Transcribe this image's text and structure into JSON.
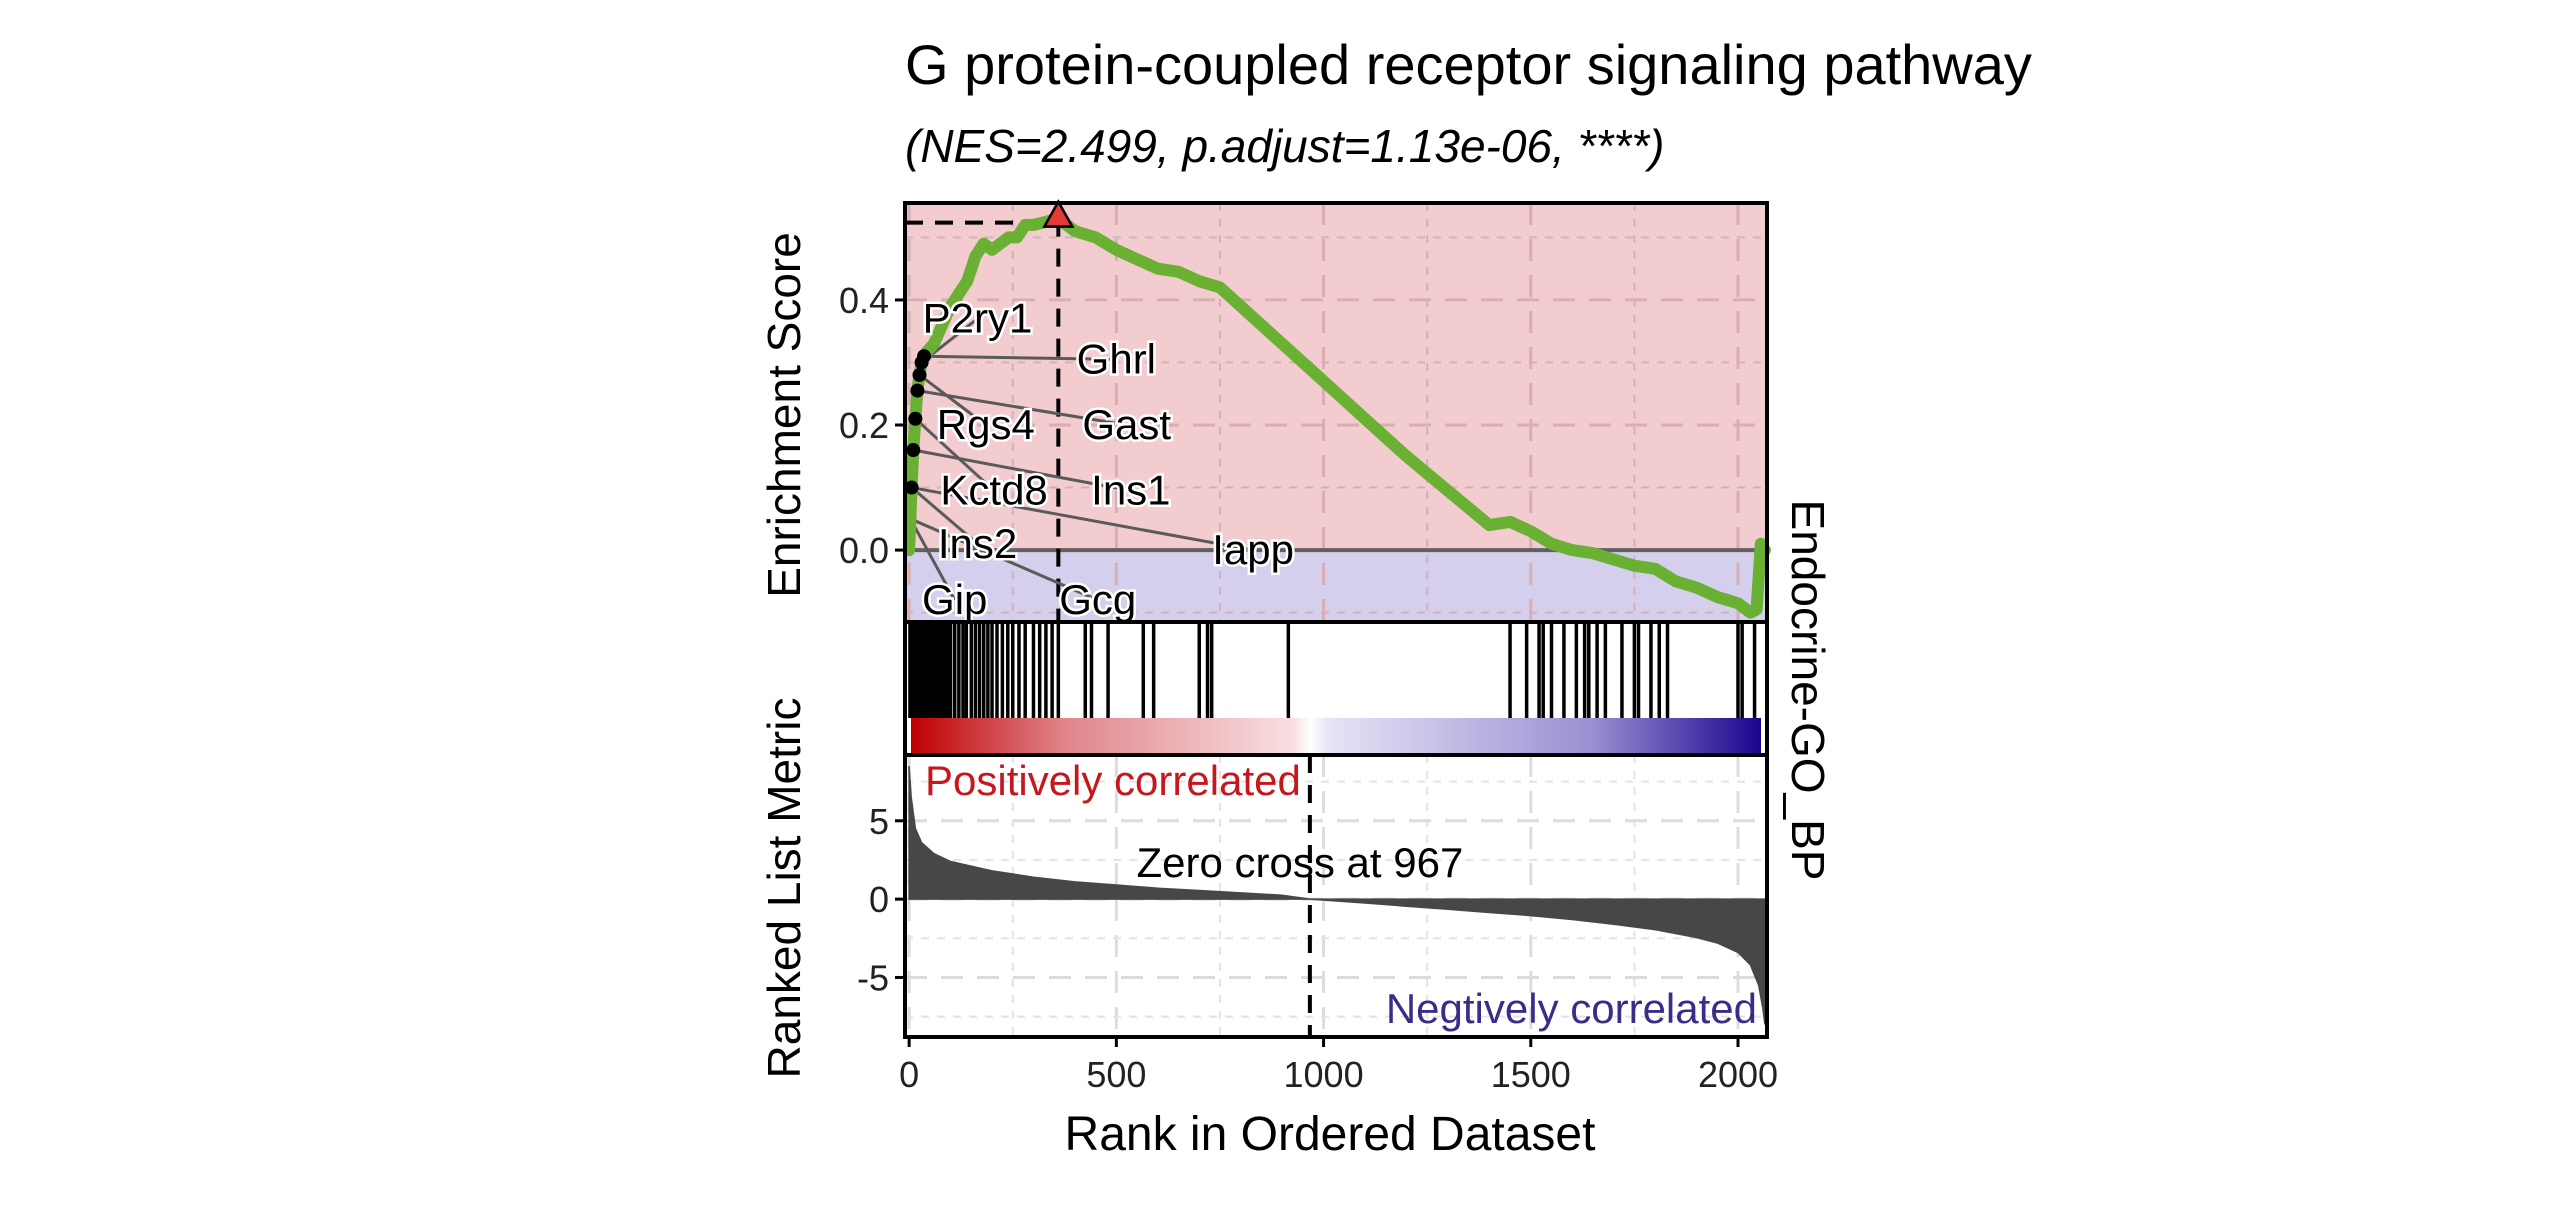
{
  "chart_data": {
    "type": "gsea_enrichment_plot",
    "title": "G protein-coupled receptor signaling pathway",
    "subtitle": "(NES=2.499, p.adjust=1.13e-06, ****)",
    "side_label": "Endocrine-GO_BP",
    "xlabel": "Rank in Ordered Dataset",
    "xlim": [
      -10,
      2070
    ],
    "x_ticks": [
      0,
      500,
      1000,
      1500,
      2000
    ],
    "colors": {
      "positive_bg": "#f2cccf",
      "negative_bg": "#d3cfec",
      "es_line": "#6ab133",
      "peak_marker": "#e53935",
      "positive_text": "#c8161d",
      "negative_text": "#3a2d8a",
      "metric_fill": "#474747",
      "heat_red": "#c00000",
      "heat_blue": "#1a0590"
    },
    "es_panel": {
      "ylabel": "Enrichment Score",
      "ylim": [
        -0.115,
        0.555
      ],
      "y_ticks": [
        0.0,
        0.2,
        0.4
      ],
      "y_tick_labels": [
        "0.0",
        "0.2",
        "0.4"
      ],
      "peak": {
        "rank": 360,
        "es": 0.53
      },
      "curve": [
        [
          0,
          0
        ],
        [
          3,
          0.05
        ],
        [
          6,
          0.1
        ],
        [
          10,
          0.16
        ],
        [
          15,
          0.21
        ],
        [
          20,
          0.255
        ],
        [
          25,
          0.28
        ],
        [
          30,
          0.3
        ],
        [
          40,
          0.315
        ],
        [
          60,
          0.33
        ],
        [
          80,
          0.36
        ],
        [
          100,
          0.39
        ],
        [
          120,
          0.41
        ],
        [
          140,
          0.43
        ],
        [
          160,
          0.47
        ],
        [
          180,
          0.49
        ],
        [
          200,
          0.48
        ],
        [
          220,
          0.49
        ],
        [
          240,
          0.5
        ],
        [
          260,
          0.5
        ],
        [
          280,
          0.52
        ],
        [
          300,
          0.52
        ],
        [
          330,
          0.525
        ],
        [
          360,
          0.53
        ],
        [
          400,
          0.51
        ],
        [
          450,
          0.5
        ],
        [
          500,
          0.48
        ],
        [
          550,
          0.465
        ],
        [
          600,
          0.45
        ],
        [
          650,
          0.445
        ],
        [
          700,
          0.43
        ],
        [
          750,
          0.42
        ],
        [
          800,
          0.39
        ],
        [
          900,
          0.33
        ],
        [
          1000,
          0.27
        ],
        [
          1100,
          0.21
        ],
        [
          1200,
          0.15
        ],
        [
          1300,
          0.095
        ],
        [
          1400,
          0.04
        ],
        [
          1450,
          0.045
        ],
        [
          1500,
          0.03
        ],
        [
          1550,
          0.01
        ],
        [
          1600,
          0.0
        ],
        [
          1650,
          -0.005
        ],
        [
          1700,
          -0.015
        ],
        [
          1750,
          -0.025
        ],
        [
          1800,
          -0.03
        ],
        [
          1850,
          -0.05
        ],
        [
          1900,
          -0.06
        ],
        [
          1950,
          -0.075
        ],
        [
          2000,
          -0.085
        ],
        [
          2030,
          -0.1
        ],
        [
          2045,
          -0.095
        ],
        [
          2055,
          0.01
        ],
        [
          2065,
          0.0
        ]
      ],
      "points": [
        [
          6,
          0.1
        ],
        [
          10,
          0.16
        ],
        [
          15,
          0.21
        ],
        [
          20,
          0.255
        ],
        [
          25,
          0.28
        ],
        [
          30,
          0.3
        ],
        [
          36,
          0.31
        ]
      ],
      "labels": [
        {
          "text": "P2ry1",
          "label_x": 165,
          "label_y": 0.37,
          "point_x": 30,
          "point_y": 0.3
        },
        {
          "text": "Ghrl",
          "label_x": 500,
          "label_y": 0.305,
          "point_x": 36,
          "point_y": 0.31
        },
        {
          "text": "Rgs4",
          "label_x": 185,
          "label_y": 0.2,
          "point_x": 25,
          "point_y": 0.28
        },
        {
          "text": "Gast",
          "label_x": 525,
          "label_y": 0.2,
          "point_x": 20,
          "point_y": 0.255
        },
        {
          "text": "Kctd8",
          "label_x": 205,
          "label_y": 0.095,
          "point_x": 15,
          "point_y": 0.21
        },
        {
          "text": "Ins1",
          "label_x": 535,
          "label_y": 0.095,
          "point_x": 10,
          "point_y": 0.16
        },
        {
          "text": "Ins2",
          "label_x": 165,
          "label_y": 0.01,
          "point_x": 6,
          "point_y": 0.1
        },
        {
          "text": "Iapp",
          "label_x": 830,
          "label_y": 0.0,
          "point_x": 6,
          "point_y": 0.1
        },
        {
          "text": "Gip",
          "label_x": 110,
          "label_y": -0.08,
          "point_x": 3,
          "point_y": 0.05
        },
        {
          "text": "Gcg",
          "label_x": 455,
          "label_y": -0.08,
          "point_x": 3,
          "point_y": 0.05
        }
      ]
    },
    "hits": [
      2,
      5,
      8,
      11,
      14,
      17,
      20,
      23,
      26,
      29,
      32,
      35,
      38,
      42,
      46,
      50,
      55,
      60,
      66,
      72,
      78,
      85,
      92,
      100,
      110,
      120,
      130,
      138,
      150,
      160,
      170,
      180,
      190,
      200,
      212,
      225,
      238,
      250,
      265,
      280,
      300,
      315,
      330,
      345,
      360,
      425,
      440,
      480,
      565,
      590,
      700,
      720,
      730,
      915,
      1450,
      1490,
      1520,
      1530,
      1550,
      1580,
      1610,
      1630,
      1640,
      1660,
      1680,
      1720,
      1750,
      1760,
      1790,
      1810,
      1830,
      2000,
      2010,
      2040
    ],
    "metric_panel": {
      "ylabel": "Ranked List Metric",
      "ylim": [
        -8.8,
        9.2
      ],
      "y_ticks": [
        -5,
        0,
        5
      ],
      "y_tick_labels": [
        "-5",
        "0",
        "5"
      ],
      "zero_cross_rank": 967,
      "zero_cross_label": "Zero cross at 967",
      "positive_label": "Positively correlated",
      "negative_label": "Negtively correlated",
      "curve": [
        [
          0,
          8.5
        ],
        [
          5,
          6.5
        ],
        [
          15,
          4.5
        ],
        [
          30,
          3.6
        ],
        [
          60,
          2.9
        ],
        [
          100,
          2.4
        ],
        [
          200,
          1.8
        ],
        [
          300,
          1.4
        ],
        [
          400,
          1.1
        ],
        [
          500,
          0.9
        ],
        [
          600,
          0.7
        ],
        [
          700,
          0.55
        ],
        [
          800,
          0.4
        ],
        [
          900,
          0.25
        ],
        [
          967,
          0
        ],
        [
          1100,
          -0.25
        ],
        [
          1200,
          -0.45
        ],
        [
          1300,
          -0.65
        ],
        [
          1400,
          -0.85
        ],
        [
          1500,
          -1.05
        ],
        [
          1600,
          -1.3
        ],
        [
          1700,
          -1.6
        ],
        [
          1800,
          -1.95
        ],
        [
          1900,
          -2.45
        ],
        [
          1950,
          -2.8
        ],
        [
          2000,
          -3.4
        ],
        [
          2030,
          -4.2
        ],
        [
          2050,
          -5.5
        ],
        [
          2060,
          -7.0
        ],
        [
          2065,
          -8.0
        ]
      ]
    }
  }
}
